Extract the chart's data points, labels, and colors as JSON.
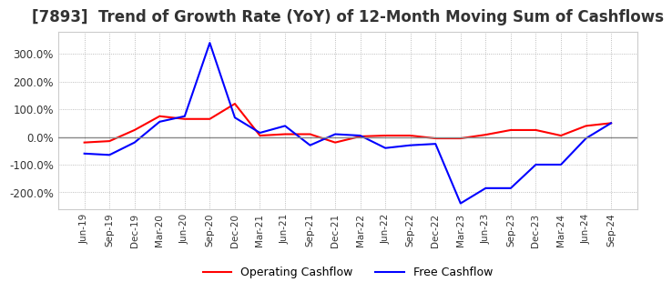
{
  "title": "[7893]  Trend of Growth Rate (YoY) of 12-Month Moving Sum of Cashflows",
  "title_fontsize": 12,
  "ylim": [
    -260,
    380
  ],
  "yticks": [
    -200,
    -100,
    0,
    100,
    200,
    300
  ],
  "background_color": "#ffffff",
  "grid_color": "#aaaaaa",
  "operating_color": "#ff0000",
  "free_color": "#0000ff",
  "x_labels": [
    "Jun-19",
    "Sep-19",
    "Dec-19",
    "Mar-20",
    "Jun-20",
    "Sep-20",
    "Dec-20",
    "Mar-21",
    "Jun-21",
    "Sep-21",
    "Dec-21",
    "Mar-22",
    "Jun-22",
    "Sep-22",
    "Dec-22",
    "Mar-23",
    "Jun-23",
    "Sep-23",
    "Dec-23",
    "Mar-24",
    "Jun-24",
    "Sep-24"
  ],
  "operating_cashflow": [
    -20,
    -15,
    25,
    75,
    65,
    65,
    120,
    5,
    10,
    10,
    -20,
    2,
    5,
    5,
    -5,
    -5,
    8,
    25,
    25,
    5,
    40,
    50
  ],
  "free_cashflow": [
    -60,
    -65,
    -20,
    55,
    75,
    340,
    70,
    15,
    40,
    -30,
    10,
    5,
    -40,
    -30,
    -25,
    -240,
    -185,
    -185,
    -100,
    -100,
    -5,
    50
  ]
}
